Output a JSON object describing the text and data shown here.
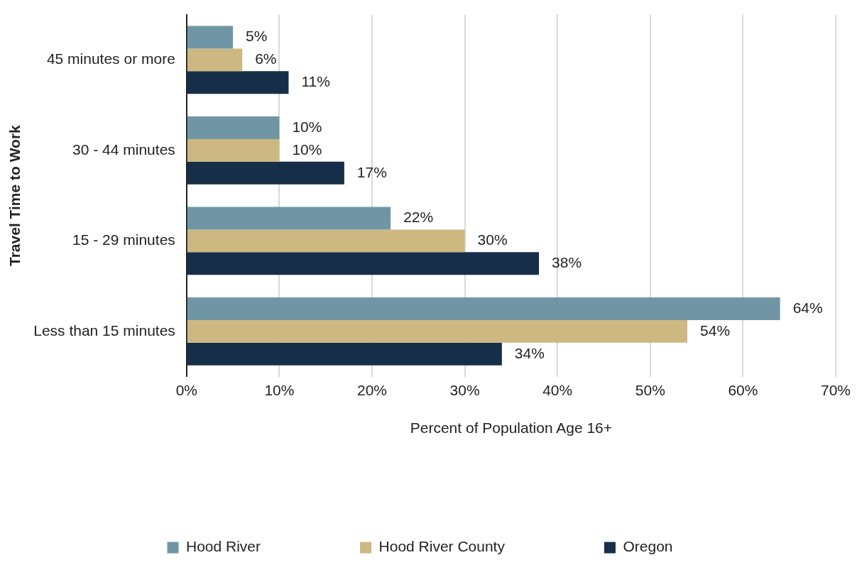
{
  "chart_data": {
    "type": "bar",
    "orientation": "horizontal",
    "xlabel": "Percent of Population Age 16+",
    "ylabel": "Travel Time to Work",
    "categories": [
      "45 minutes or more",
      "30 - 44 minutes",
      "15 - 29 minutes",
      "Less than 15 minutes"
    ],
    "series": [
      {
        "name": "Hood River",
        "color": "#7096a6",
        "values": [
          5,
          10,
          22,
          64
        ],
        "value_labels": [
          "5%",
          "10%",
          "22%",
          "64%"
        ]
      },
      {
        "name": "Hood River County",
        "color": "#cdb882",
        "values": [
          6,
          10,
          30,
          54
        ],
        "value_labels": [
          "6%",
          "10%",
          "30%",
          "54%"
        ]
      },
      {
        "name": "Oregon",
        "color": "#172e48",
        "values": [
          11,
          17,
          38,
          34
        ],
        "value_labels": [
          "11%",
          "17%",
          "38%",
          "34%"
        ]
      }
    ],
    "xlim": [
      0,
      70
    ],
    "xticks": [
      {
        "value": 0,
        "label": "0%"
      },
      {
        "value": 10,
        "label": "10%"
      },
      {
        "value": 20,
        "label": "20%"
      },
      {
        "value": 30,
        "label": "30%"
      },
      {
        "value": 40,
        "label": "40%"
      },
      {
        "value": 50,
        "label": "50%"
      },
      {
        "value": 60,
        "label": "60%"
      },
      {
        "value": 70,
        "label": "70%"
      }
    ],
    "grid": "x",
    "legend": "bottom"
  }
}
